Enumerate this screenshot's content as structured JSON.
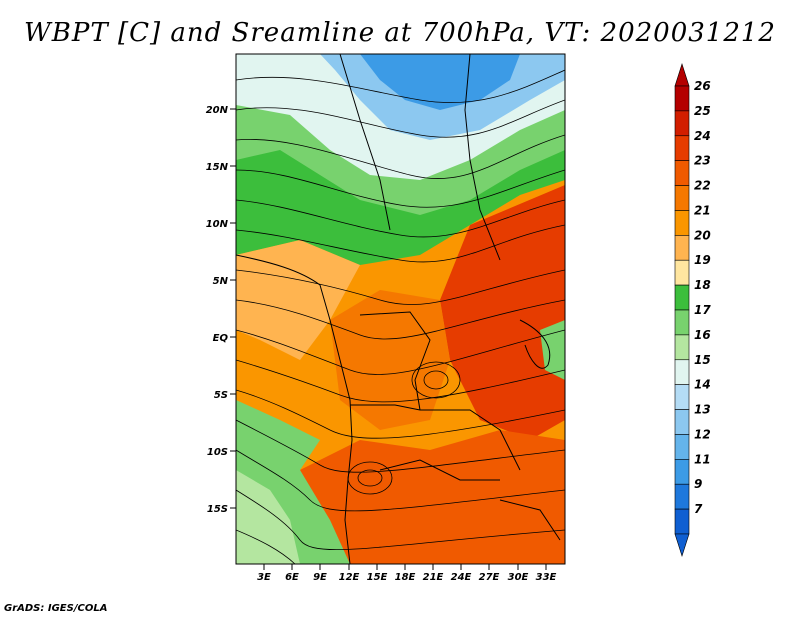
{
  "title": "WBPT [C] and Sreamline at 700hPa, VT: 2020031212",
  "credit": "GrADS: IGES/COLA",
  "map": {
    "lat_labels": [
      "20N",
      "15N",
      "10N",
      "5N",
      "EQ",
      "5S",
      "10S",
      "15S"
    ],
    "lon_labels": [
      "3E",
      "6E",
      "9E",
      "12E",
      "15E",
      "18E",
      "21E",
      "24E",
      "27E",
      "30E",
      "33E"
    ]
  },
  "colorbar": {
    "labels": [
      "26",
      "25",
      "24",
      "23",
      "22",
      "21",
      "20",
      "19",
      "18",
      "17",
      "16",
      "15",
      "14",
      "13",
      "12",
      "11",
      "9",
      "7"
    ],
    "colors": [
      "#b40000",
      "#d21e00",
      "#e63c00",
      "#f05a00",
      "#f57800",
      "#fa9600",
      "#ffb450",
      "#ffe6a0",
      "#3cbe3c",
      "#78d26e",
      "#b4e6a0",
      "#e1f5f0",
      "#b4dcf5",
      "#8cc8f0",
      "#64b4eb",
      "#3c9be6",
      "#1e78dc",
      "#0f5fd2"
    ]
  }
}
